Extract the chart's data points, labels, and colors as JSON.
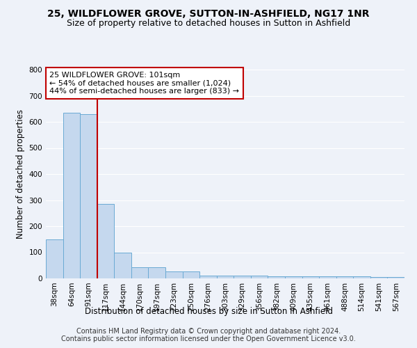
{
  "title1": "25, WILDFLOWER GROVE, SUTTON-IN-ASHFIELD, NG17 1NR",
  "title2": "Size of property relative to detached houses in Sutton in Ashfield",
  "xlabel": "Distribution of detached houses by size in Sutton in Ashfield",
  "ylabel": "Number of detached properties",
  "footnote1": "Contains HM Land Registry data © Crown copyright and database right 2024.",
  "footnote2": "Contains public sector information licensed under the Open Government Licence v3.0.",
  "bar_labels": [
    "38sqm",
    "64sqm",
    "91sqm",
    "117sqm",
    "144sqm",
    "170sqm",
    "197sqm",
    "223sqm",
    "250sqm",
    "276sqm",
    "303sqm",
    "329sqm",
    "356sqm",
    "382sqm",
    "409sqm",
    "435sqm",
    "461sqm",
    "488sqm",
    "514sqm",
    "541sqm",
    "567sqm"
  ],
  "bar_values": [
    150,
    635,
    630,
    285,
    100,
    42,
    42,
    27,
    27,
    10,
    10,
    10,
    10,
    7,
    7,
    7,
    7,
    7,
    7,
    5,
    5
  ],
  "bar_color": "#c5d8ee",
  "bar_edge_color": "#6aaad4",
  "vline_x": 2.5,
  "vline_color": "#c00000",
  "ylim": [
    0,
    800
  ],
  "yticks": [
    0,
    100,
    200,
    300,
    400,
    500,
    600,
    700,
    800
  ],
  "annotation_box_text": "25 WILDFLOWER GROVE: 101sqm\n← 54% of detached houses are smaller (1,024)\n44% of semi-detached houses are larger (833) →",
  "background_color": "#eef2f9",
  "grid_color": "#ffffff",
  "title_fontsize": 10,
  "subtitle_fontsize": 9,
  "axis_label_fontsize": 8.5,
  "tick_label_fontsize": 7.5,
  "annotation_fontsize": 8,
  "footnote_fontsize": 7
}
